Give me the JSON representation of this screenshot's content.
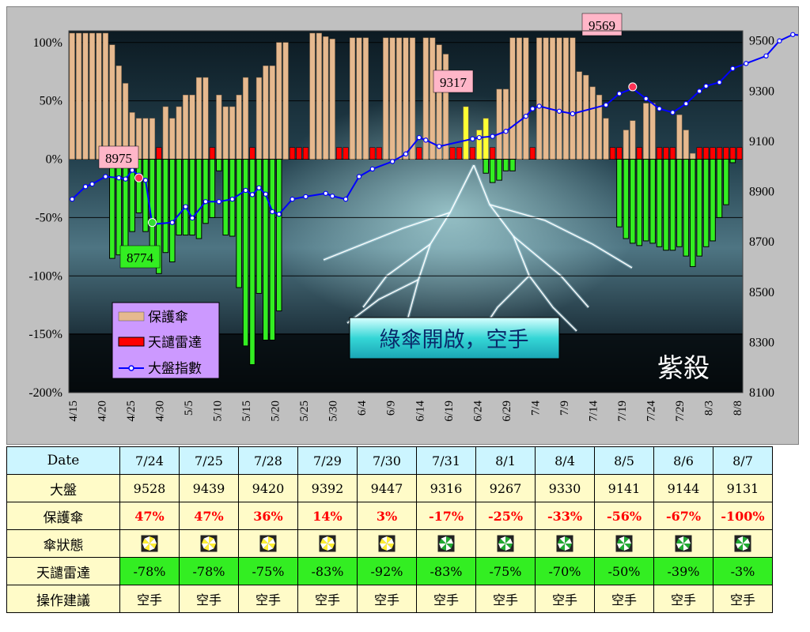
{
  "chart_data": {
    "type": "bar",
    "y_left_ticks": [
      "100%",
      "50%",
      "0%",
      "-50%",
      "-100%",
      "-150%",
      "-200%"
    ],
    "y_left_range": [
      -200,
      110
    ],
    "y_right_ticks": [
      "9500",
      "9300",
      "9100",
      "8900",
      "8700",
      "8500",
      "8300",
      "8100"
    ],
    "y_right_range": [
      8100,
      9540
    ],
    "x_tick_labels": [
      "4/15",
      "4/20",
      "4/25",
      "4/30",
      "5/5",
      "5/10",
      "5/15",
      "5/20",
      "5/25",
      "5/30",
      "6/4",
      "6/9",
      "6/14",
      "6/19",
      "6/24",
      "6/29",
      "7/4",
      "7/9",
      "7/14",
      "7/19",
      "7/24",
      "7/29",
      "8/3",
      "8/8"
    ],
    "legend": [
      {
        "name": "保護傘",
        "color": "#e6b98f"
      },
      {
        "name": "天譴雷達",
        "color": "#ff0000"
      },
      {
        "name": "大盤指數",
        "color": "#0000ff"
      }
    ],
    "annotations": [
      {
        "text": "8975",
        "color": "#ffb6c8"
      },
      {
        "text": "8774",
        "color": "#33ee22"
      },
      {
        "text": "9317",
        "color": "#ffb6c8"
      },
      {
        "text": "9569",
        "color": "#ffb6c8"
      }
    ],
    "banner": "綠傘開啟，空手",
    "signature": "紫殺",
    "umbrella": [
      110,
      110,
      110,
      110,
      110,
      110,
      98,
      80,
      65,
      40,
      35,
      35,
      35,
      10,
      45,
      35,
      45,
      55,
      55,
      70,
      70,
      10,
      55,
      45,
      45,
      55,
      70,
      10,
      70,
      80,
      80,
      100,
      100,
      10,
      10,
      10,
      110,
      108,
      105,
      103,
      10,
      10,
      104,
      104,
      104,
      10,
      10,
      104,
      104,
      104,
      104,
      104,
      10,
      104,
      104,
      98,
      90,
      10,
      10,
      45,
      10,
      25,
      35,
      10,
      60,
      60,
      104,
      104,
      104,
      10,
      104,
      104,
      104,
      104,
      104,
      104,
      75,
      72,
      62,
      55,
      35,
      10,
      10,
      25,
      33,
      10,
      48,
      48,
      10,
      10,
      10,
      38,
      25,
      5,
      10,
      10,
      10,
      10,
      10,
      10,
      10
    ],
    "radar": [
      0,
      0,
      0,
      0,
      0,
      0,
      -85,
      -82,
      -80,
      -62,
      -46,
      -62,
      -90,
      -98,
      -80,
      -88,
      -65,
      -65,
      -65,
      -68,
      -55,
      -50,
      -10,
      -65,
      -66,
      -110,
      -160,
      -176,
      -115,
      -155,
      -155,
      -130,
      0,
      0,
      0,
      0,
      0,
      0,
      0,
      0,
      0,
      0,
      0,
      0,
      0,
      0,
      0,
      0,
      0,
      0,
      0,
      0,
      0,
      0,
      0,
      0,
      0,
      0,
      0,
      0,
      0,
      0,
      -12,
      -20,
      -18,
      -10,
      -10,
      0,
      0,
      0,
      0,
      0,
      0,
      0,
      0,
      0,
      0,
      0,
      0,
      0,
      0,
      0,
      -58,
      -68,
      -72,
      -74,
      -70,
      -72,
      -75,
      -78,
      -78,
      -75,
      -83,
      -92,
      -83,
      -75,
      -70,
      -50,
      -39,
      -3,
      0
    ],
    "index_points": [
      [
        0,
        8870
      ],
      [
        2,
        8920
      ],
      [
        3,
        8930
      ],
      [
        5,
        8960
      ],
      [
        7,
        8955
      ],
      [
        8,
        8950
      ],
      [
        9,
        8985
      ],
      [
        10,
        8965
      ],
      [
        11,
        8945
      ],
      [
        12,
        8770
      ],
      [
        15,
        8777
      ],
      [
        17,
        8840
      ],
      [
        18,
        8795
      ],
      [
        20,
        8860
      ],
      [
        22,
        8860
      ],
      [
        24,
        8870
      ],
      [
        26,
        8905
      ],
      [
        27,
        8888
      ],
      [
        28,
        8915
      ],
      [
        29,
        8890
      ],
      [
        30,
        8820
      ],
      [
        31,
        8810
      ],
      [
        33,
        8870
      ],
      [
        35,
        8880
      ],
      [
        38,
        8893
      ],
      [
        39,
        8882
      ],
      [
        41,
        8870
      ],
      [
        43,
        8960
      ],
      [
        45,
        8990
      ],
      [
        48,
        9020
      ],
      [
        50,
        9050
      ],
      [
        52,
        9115
      ],
      [
        53,
        9105
      ],
      [
        55,
        9080
      ],
      [
        60,
        9110
      ],
      [
        61,
        9115
      ],
      [
        63,
        9120
      ],
      [
        65,
        9140
      ],
      [
        68,
        9200
      ],
      [
        69,
        9230
      ],
      [
        70,
        9240
      ],
      [
        73,
        9220
      ],
      [
        75,
        9210
      ],
      [
        80,
        9245
      ],
      [
        82,
        9290
      ],
      [
        84,
        9310
      ],
      [
        86,
        9270
      ],
      [
        88,
        9230
      ],
      [
        90,
        9215
      ],
      [
        92,
        9250
      ],
      [
        94,
        9300
      ],
      [
        95,
        9320
      ],
      [
        97,
        9335
      ],
      [
        99,
        9390
      ],
      [
        101,
        9410
      ],
      [
        104,
        9440
      ],
      [
        106,
        9500
      ],
      [
        108,
        9525
      ],
      [
        110,
        9520
      ],
      [
        113,
        9517
      ],
      [
        115,
        9525
      ],
      [
        116,
        9525
      ],
      [
        118,
        9535
      ],
      [
        119,
        9510
      ],
      [
        121,
        9560
      ],
      [
        122,
        9525
      ],
      [
        124,
        9545
      ],
      [
        127,
        9530
      ],
      [
        129,
        9540
      ],
      [
        132,
        9569
      ],
      [
        135,
        9460
      ],
      [
        137,
        9400
      ],
      [
        139,
        9400
      ],
      [
        141,
        9430
      ],
      [
        143,
        9440
      ],
      [
        145,
        9510
      ],
      [
        147,
        9560
      ],
      [
        149,
        9520
      ],
      [
        151,
        9480
      ],
      [
        154,
        9470
      ],
      [
        155,
        9450
      ],
      [
        157,
        9475
      ],
      [
        158,
        9440
      ],
      [
        160,
        9410
      ],
      [
        162,
        9350
      ],
      [
        164,
        9300
      ],
      [
        167,
        9330
      ],
      [
        169,
        9340
      ],
      [
        172,
        9140
      ],
      [
        173,
        9140
      ],
      [
        175,
        9130
      ]
    ]
  },
  "table": {
    "header_label": "Date",
    "dates": [
      "7/24",
      "7/25",
      "7/28",
      "7/29",
      "7/30",
      "7/31",
      "8/1",
      "8/4",
      "8/5",
      "8/6",
      "8/7"
    ],
    "rows": [
      {
        "label": "大盤",
        "values": [
          "9528",
          "9439",
          "9420",
          "9392",
          "9447",
          "9316",
          "9267",
          "9330",
          "9141",
          "9144",
          "9131"
        ]
      },
      {
        "label": "保護傘",
        "values": [
          "47%",
          "47%",
          "36%",
          "14%",
          "3%",
          "-17%",
          "-25%",
          "-33%",
          "-56%",
          "-67%",
          "-100%"
        ]
      },
      {
        "label": "傘狀態",
        "values": [
          "yellow",
          "yellow",
          "yellow",
          "yellow",
          "yellow",
          "green",
          "green",
          "green",
          "green",
          "green",
          "green"
        ]
      },
      {
        "label": "天譴雷達",
        "values": [
          "-78%",
          "-78%",
          "-75%",
          "-83%",
          "-92%",
          "-83%",
          "-75%",
          "-70%",
          "-50%",
          "-39%",
          "-3%"
        ]
      },
      {
        "label": "操作建議",
        "values": [
          "空手",
          "空手",
          "空手",
          "空手",
          "空手",
          "空手",
          "空手",
          "空手",
          "空手",
          "空手",
          "空手"
        ]
      }
    ]
  }
}
